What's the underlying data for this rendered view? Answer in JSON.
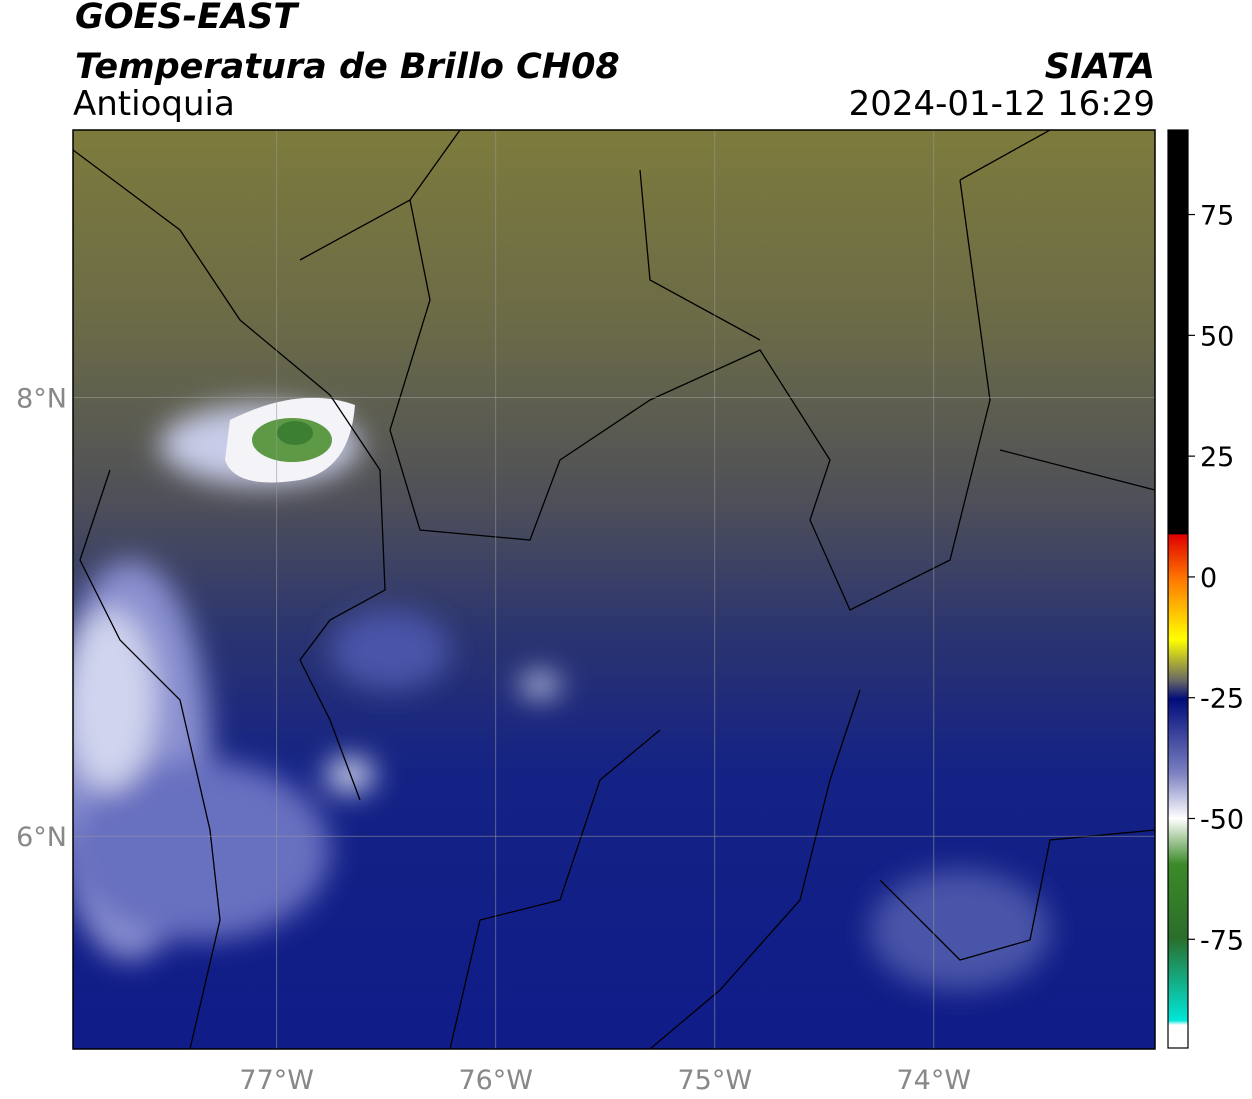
{
  "header": {
    "satellite": "GOES-EAST",
    "product": "Temperatura de Brillo CH08",
    "region": "Antioquia",
    "agency": "SIATA",
    "timestamp": "2024-01-12 16:29"
  },
  "map": {
    "xlim": [
      -77.93,
      -72.99
    ],
    "ylim": [
      5.03,
      9.22
    ],
    "xticks": [
      {
        "value": -77,
        "label": "77°W"
      },
      {
        "value": -76,
        "label": "76°W"
      },
      {
        "value": -75,
        "label": "75°W"
      },
      {
        "value": -74,
        "label": "74°W"
      }
    ],
    "yticks": [
      {
        "value": 8,
        "label": "8°N"
      },
      {
        "value": 6,
        "label": "6°N"
      }
    ],
    "grid": true
  },
  "colorbar": {
    "lim": [
      -97.5,
      92.5
    ],
    "ticks": [
      75,
      50,
      25,
      0,
      -25,
      -50,
      -75
    ]
  }
}
